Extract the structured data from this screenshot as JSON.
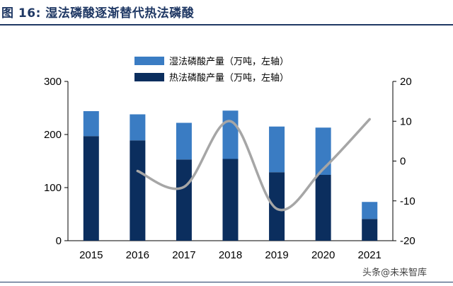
{
  "figure": {
    "title": "图 16: 湿法磷酸逐渐替代热法磷酸"
  },
  "watermark": "头条@未来智库",
  "chart_data": {
    "type": "bar",
    "stacked": true,
    "categories": [
      "2015",
      "2016",
      "2017",
      "2018",
      "2019",
      "2020",
      "2021"
    ],
    "series": [
      {
        "name": "湿法磷酸产量（万吨，左轴）",
        "type": "bar",
        "axis": "left",
        "color": "#3a7cc3",
        "values": [
          47,
          49,
          69,
          91,
          86,
          89,
          32
        ]
      },
      {
        "name": "热法磷酸产量（万吨，左轴）",
        "type": "bar",
        "axis": "left",
        "color": "#0b2e5e",
        "values": [
          197,
          189,
          153,
          154,
          129,
          124,
          41
        ]
      },
      {
        "name": "",
        "type": "line",
        "axis": "right",
        "color": "#a6a6a6",
        "values": [
          null,
          -2.5,
          -6.5,
          10,
          -12,
          -2,
          10.5
        ]
      }
    ],
    "left_axis": {
      "ylim": [
        0,
        300
      ],
      "ticks": [
        0,
        100,
        200,
        300
      ]
    },
    "right_axis": {
      "ylim": [
        -20,
        20
      ],
      "ticks": [
        -20,
        -10,
        0,
        10,
        20
      ]
    },
    "grid": false,
    "legend_position": "top-center"
  }
}
